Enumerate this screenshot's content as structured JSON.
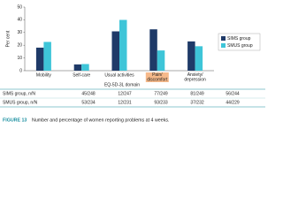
{
  "chart_data": {
    "type": "bar",
    "y_label": "Per cent",
    "x_label": "EQ-5D-3L domain",
    "categories": [
      "Mobility",
      "Self-care",
      "Usual activities",
      "Pain/ discomfort",
      "Anxiety/ depression"
    ],
    "series": [
      {
        "name": "SIMS group",
        "color": "#1f3a68",
        "values": [
          18.1,
          4.9,
          30.9,
          32.5,
          23.0
        ]
      },
      {
        "name": "SMUS group",
        "color": "#3ec5d8",
        "values": [
          22.6,
          5.2,
          39.9,
          15.9,
          19.2
        ]
      }
    ],
    "ylim": [
      0,
      50
    ],
    "yticks": [
      0,
      10,
      20,
      30,
      40,
      50
    ],
    "highlight": {
      "index": 3,
      "color": "#f6b98a"
    },
    "legend": "right"
  },
  "table": {
    "rows": [
      [
        "SIMS group, n/N",
        "45/248",
        "12/247",
        "77/249",
        "81/249",
        "56/244"
      ],
      [
        "SMUS group, n/N",
        "53/234",
        "12/231",
        "93/233",
        "37/232",
        "44/229"
      ]
    ]
  },
  "caption": {
    "label": "FIGURE 13",
    "text": "Number and percentage of women reporting problems at 4 weeks."
  }
}
